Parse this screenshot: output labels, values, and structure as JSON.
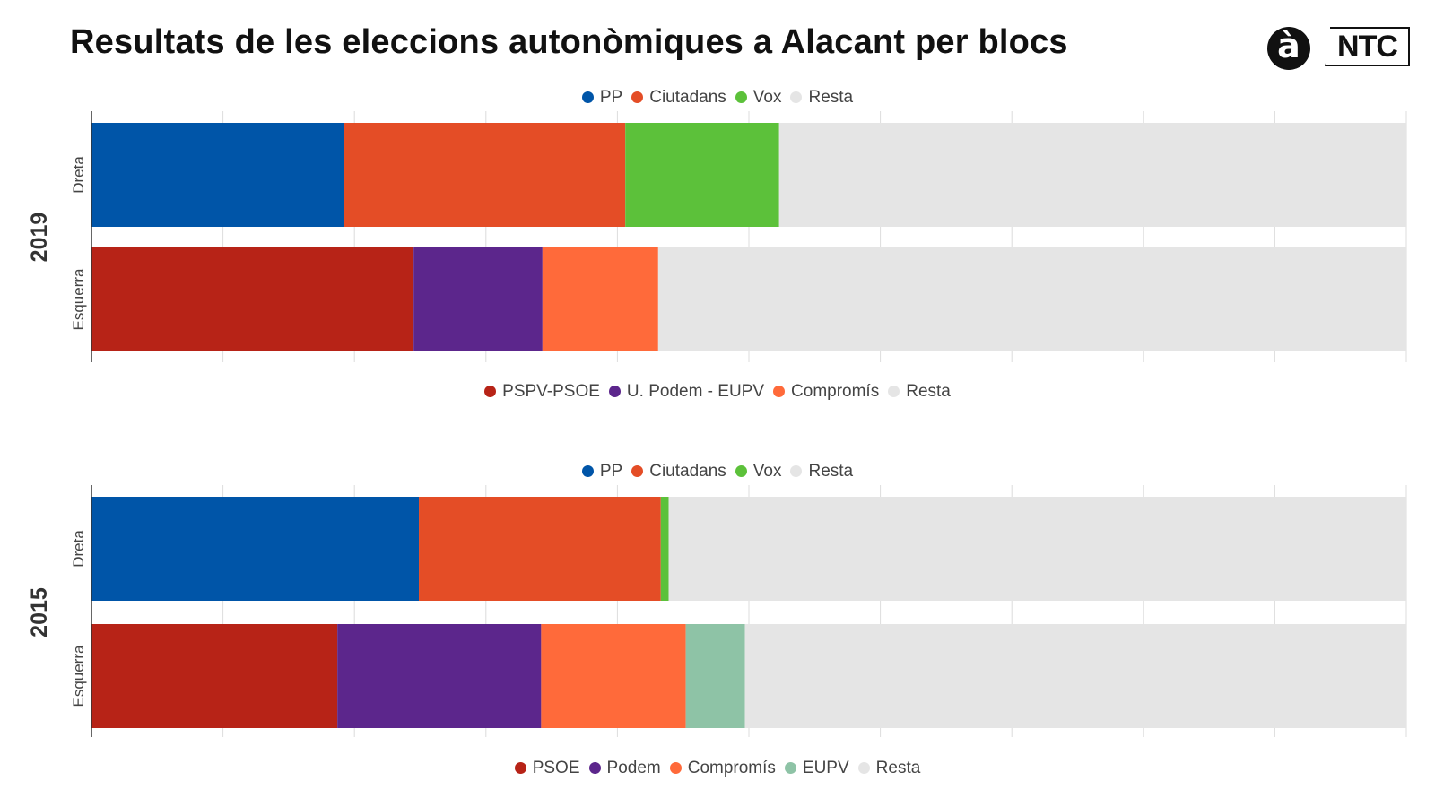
{
  "title": "Resultats de les eleccions autonòmiques a Alacant per blocs",
  "logo": {
    "a_label": "à",
    "ntc_label": "NTC"
  },
  "chart_data": [
    {
      "type": "bar",
      "orientation": "horizontal",
      "stacked": true,
      "group_label": "2019",
      "xlim": [
        0,
        100
      ],
      "grid": true,
      "legend_placement": "top",
      "categories": [
        "Dreta",
        "Esquerra"
      ],
      "legends": [
        {
          "position": "top",
          "entries": [
            {
              "name": "PP",
              "color": "#0055a8"
            },
            {
              "name": "Ciutadans",
              "color": "#e44d26"
            },
            {
              "name": "Vox",
              "color": "#5cc13a"
            },
            {
              "name": "Resta",
              "color": "#e5e5e5"
            }
          ]
        },
        {
          "position": "bottom",
          "entries": [
            {
              "name": "PSPV-PSOE",
              "color": "#b72317"
            },
            {
              "name": "U. Podem - EUPV",
              "color": "#5c268c"
            },
            {
              "name": "Compromís",
              "color": "#ff6a3a"
            },
            {
              "name": "Resta",
              "color": "#e5e5e5"
            }
          ]
        }
      ],
      "bars": [
        {
          "category": "Dreta",
          "segments": [
            {
              "name": "PP",
              "value": 19.2,
              "color": "#0055a8"
            },
            {
              "name": "Ciutadans",
              "value": 21.4,
              "color": "#e44d26"
            },
            {
              "name": "Vox",
              "value": 11.7,
              "color": "#5cc13a"
            },
            {
              "name": "Resta",
              "value": 47.7,
              "color": "#e5e5e5"
            }
          ]
        },
        {
          "category": "Esquerra",
          "segments": [
            {
              "name": "PSPV-PSOE",
              "value": 24.5,
              "color": "#b72317"
            },
            {
              "name": "U. Podem - EUPV",
              "value": 9.8,
              "color": "#5c268c"
            },
            {
              "name": "Compromís",
              "value": 8.8,
              "color": "#ff6a3a"
            },
            {
              "name": "Resta",
              "value": 56.9,
              "color": "#e5e5e5"
            }
          ]
        }
      ]
    },
    {
      "type": "bar",
      "orientation": "horizontal",
      "stacked": true,
      "group_label": "2015",
      "xlim": [
        0,
        100
      ],
      "grid": true,
      "legend_placement": "top",
      "categories": [
        "Dreta",
        "Esquerra"
      ],
      "legends": [
        {
          "position": "top",
          "entries": [
            {
              "name": "PP",
              "color": "#0055a8"
            },
            {
              "name": "Ciutadans",
              "color": "#e44d26"
            },
            {
              "name": "Vox",
              "color": "#5cc13a"
            },
            {
              "name": "Resta",
              "color": "#e5e5e5"
            }
          ]
        },
        {
          "position": "bottom",
          "entries": [
            {
              "name": "PSOE",
              "color": "#b72317"
            },
            {
              "name": "Podem",
              "color": "#5c268c"
            },
            {
              "name": "Compromís",
              "color": "#ff6a3a"
            },
            {
              "name": "EUPV",
              "color": "#8ec3a6"
            },
            {
              "name": "Resta",
              "color": "#e5e5e5"
            }
          ]
        }
      ],
      "bars": [
        {
          "category": "Dreta",
          "segments": [
            {
              "name": "PP",
              "value": 24.9,
              "color": "#0055a8"
            },
            {
              "name": "Ciutadans",
              "value": 18.4,
              "color": "#e44d26"
            },
            {
              "name": "Vox",
              "value": 0.6,
              "color": "#5cc13a"
            },
            {
              "name": "Resta",
              "value": 56.1,
              "color": "#e5e5e5"
            }
          ]
        },
        {
          "category": "Esquerra",
          "segments": [
            {
              "name": "PSOE",
              "value": 18.7,
              "color": "#b72317"
            },
            {
              "name": "Podem",
              "value": 15.5,
              "color": "#5c268c"
            },
            {
              "name": "Compromís",
              "value": 11.0,
              "color": "#ff6a3a"
            },
            {
              "name": "EUPV",
              "value": 4.5,
              "color": "#8ec3a6"
            },
            {
              "name": "Resta",
              "value": 50.3,
              "color": "#e5e5e5"
            }
          ]
        }
      ]
    }
  ]
}
